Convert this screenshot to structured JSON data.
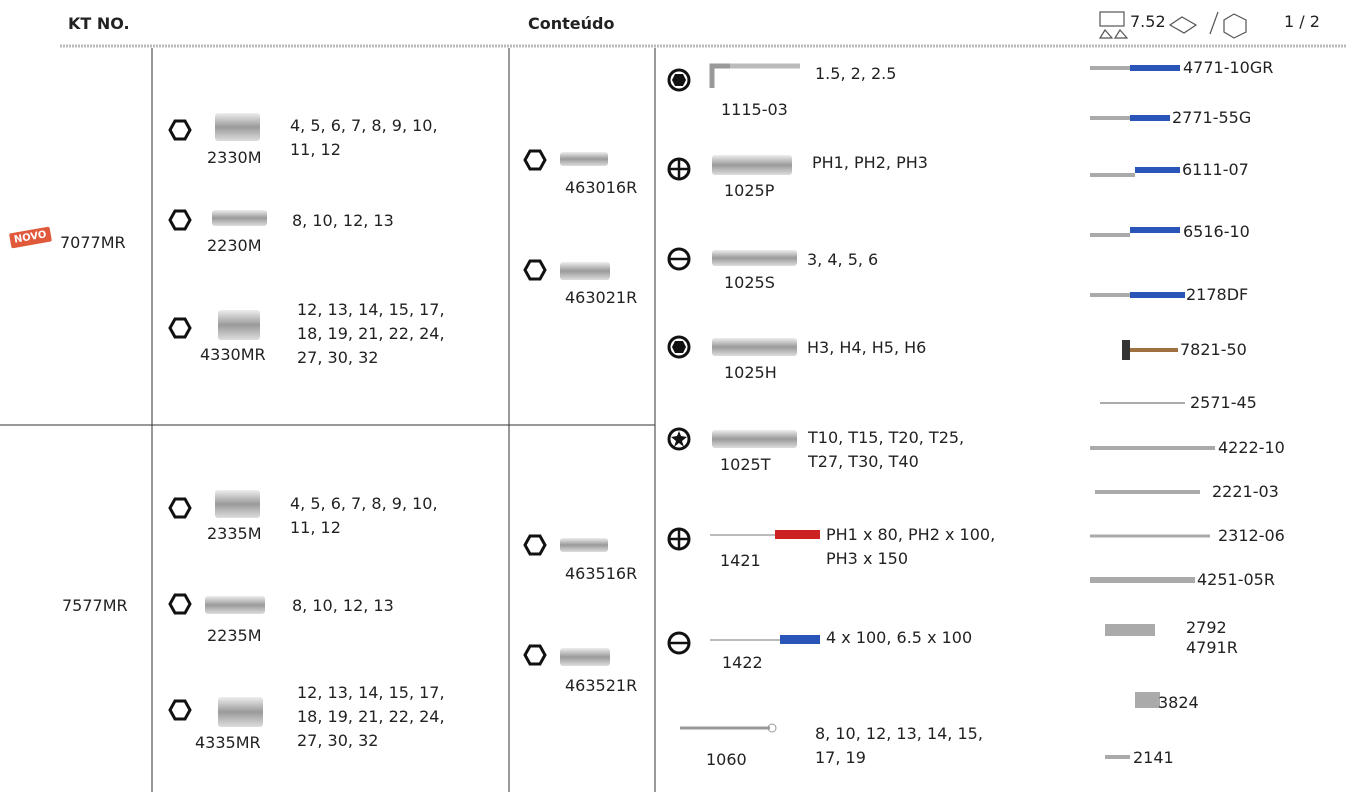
{
  "header": {
    "kt_no": "KT NO.",
    "contents": "Conteúdo",
    "weight": "7.52",
    "boxes": "1 / 2"
  },
  "badge": "NOVO",
  "kits": [
    {
      "code": "7077MR",
      "sockets": [
        {
          "code": "2330M",
          "sizes": [
            "4, 5, 6, 7, 8, 9, 10,",
            "11, 12"
          ]
        },
        {
          "code": "2230M",
          "sizes": [
            "8, 10, 12, 13"
          ]
        },
        {
          "code": "4330MR",
          "sizes": [
            "12, 13, 14, 15, 17,",
            "18, 19, 21, 22, 24,",
            "27, 30, 32"
          ]
        }
      ],
      "bits": [
        "463016R",
        "463021R"
      ]
    },
    {
      "code": "7577MR",
      "sockets": [
        {
          "code": "2335M",
          "sizes": [
            "4, 5, 6, 7, 8, 9, 10,",
            "11, 12"
          ]
        },
        {
          "code": "2235M",
          "sizes": [
            "8, 10, 12, 13"
          ]
        },
        {
          "code": "4335MR",
          "sizes": [
            "12, 13, 14, 15, 17,",
            "18, 19, 21, 22, 24,",
            "27, 30, 32"
          ]
        }
      ],
      "bits": [
        "463516R",
        "463521R"
      ]
    }
  ],
  "tools": [
    {
      "code": "1115-03",
      "sizes": [
        "1.5, 2, 2.5"
      ]
    },
    {
      "code": "1025P",
      "sizes": [
        "PH1, PH2, PH3"
      ]
    },
    {
      "code": "1025S",
      "sizes": [
        "3, 4, 5, 6"
      ]
    },
    {
      "code": "1025H",
      "sizes": [
        "H3, H4, H5, H6"
      ]
    },
    {
      "code": "1025T",
      "sizes": [
        "T10, T15, T20, T25,",
        "T27, T30, T40"
      ]
    },
    {
      "code": "1421",
      "sizes": [
        "PH1 x 80, PH2 x 100,",
        "PH3 x 150"
      ]
    },
    {
      "code": "1422",
      "sizes": [
        "4 x 100, 6.5 x 100"
      ]
    },
    {
      "code": "1060",
      "sizes": [
        "8, 10, 12, 13, 14, 15,",
        "17, 19"
      ]
    }
  ],
  "accessories": [
    [
      "4771-10GR"
    ],
    [
      "2771-55G"
    ],
    [
      "6111-07"
    ],
    [
      "6516-10"
    ],
    [
      "2178DF"
    ],
    [
      "7821-50"
    ],
    [
      "2571-45"
    ],
    [
      "4222-10"
    ],
    [
      "2221-03"
    ],
    [
      "2312-06"
    ],
    [
      "4251-05R"
    ],
    [
      "2792",
      "4791R"
    ],
    [
      "3824"
    ],
    [
      "2141"
    ]
  ]
}
